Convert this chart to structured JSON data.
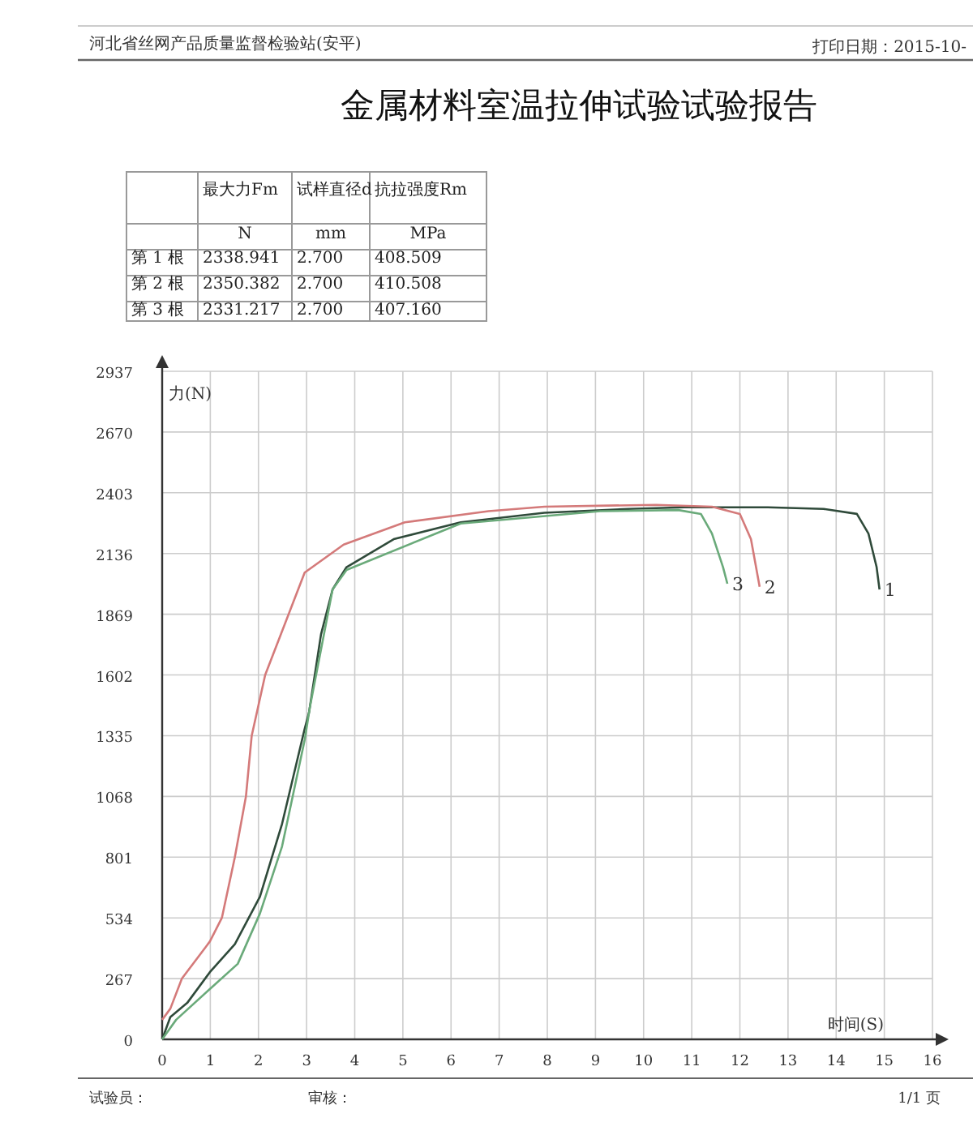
{
  "chart_data": {
    "type": "line",
    "title": "金属材料室温拉伸试验试验报告",
    "xlabel": "时间(S)",
    "ylabel": "力(N)",
    "annotations": [
      "河北省丝网产品质量监督检验站(安平)",
      "打印日期：2015-10-",
      "最大力Fm",
      "试样直径d",
      "抗拉强度Rm",
      "N",
      "mm",
      "MPa",
      "第 1 根",
      "2338.941",
      "2.700",
      "408.509",
      "第 2 根",
      "2350.382",
      "2.700",
      "410.508",
      "第 3 根",
      "2331.217",
      "2.700",
      "407.160",
      "试验员：",
      "审核：",
      "1/1 页"
    ],
    "xlim": [
      0,
      16
    ],
    "xticks": [
      0,
      1,
      2,
      3,
      4,
      5,
      6,
      7,
      8,
      9,
      10,
      11,
      12,
      13,
      14,
      15,
      16
    ],
    "ylim": [
      0,
      2937
    ],
    "yticks": [
      0,
      267,
      534,
      801,
      1068,
      1335,
      1602,
      1869,
      2136,
      2403,
      2670,
      2937
    ],
    "grid": true,
    "line_style": "solid",
    "marker": "none",
    "series": [
      {
        "name": "1",
        "color": "#2f4a3a",
        "x": [
          0,
          0.17,
          0.52,
          0.99,
          1.51,
          2.03,
          2.49,
          2.96,
          3.05,
          3.3,
          3.54,
          3.83,
          4.81,
          6.2,
          7.94,
          9.68,
          10.84,
          12.58,
          13.74,
          14.43,
          14.67,
          14.84,
          14.9
        ],
        "values": [
          0,
          98,
          160,
          295,
          418,
          627,
          947,
          1365,
          1437,
          1781,
          1978,
          2076,
          2199,
          2273,
          2315,
          2332,
          2339,
          2339,
          2332,
          2310,
          2224,
          2076,
          1978
        ]
      },
      {
        "name": "2",
        "color": "#d47a7a",
        "x": [
          0,
          0.17,
          0.41,
          0.99,
          1.24,
          1.51,
          1.74,
          1.86,
          2.14,
          2.96,
          3.77,
          5.04,
          6.78,
          7.94,
          10.26,
          11.42,
          12.0,
          12.23,
          12.41
        ],
        "values": [
          86,
          135,
          267,
          430,
          534,
          801,
          1068,
          1335,
          1602,
          2052,
          2175,
          2273,
          2322,
          2342,
          2350,
          2342,
          2310,
          2199,
          1990
        ]
      },
      {
        "name": "3",
        "color": "#6aaa7a",
        "x": [
          0,
          0.29,
          0.99,
          1.57,
          2.03,
          2.49,
          2.96,
          3.07,
          3.54,
          3.83,
          6.2,
          9.1,
          10.72,
          11.19,
          11.42,
          11.65,
          11.74
        ],
        "values": [
          0,
          86,
          221,
          332,
          553,
          848,
          1316,
          1462,
          1978,
          2064,
          2268,
          2322,
          2327,
          2310,
          2224,
          2076,
          2003
        ]
      }
    ]
  }
}
